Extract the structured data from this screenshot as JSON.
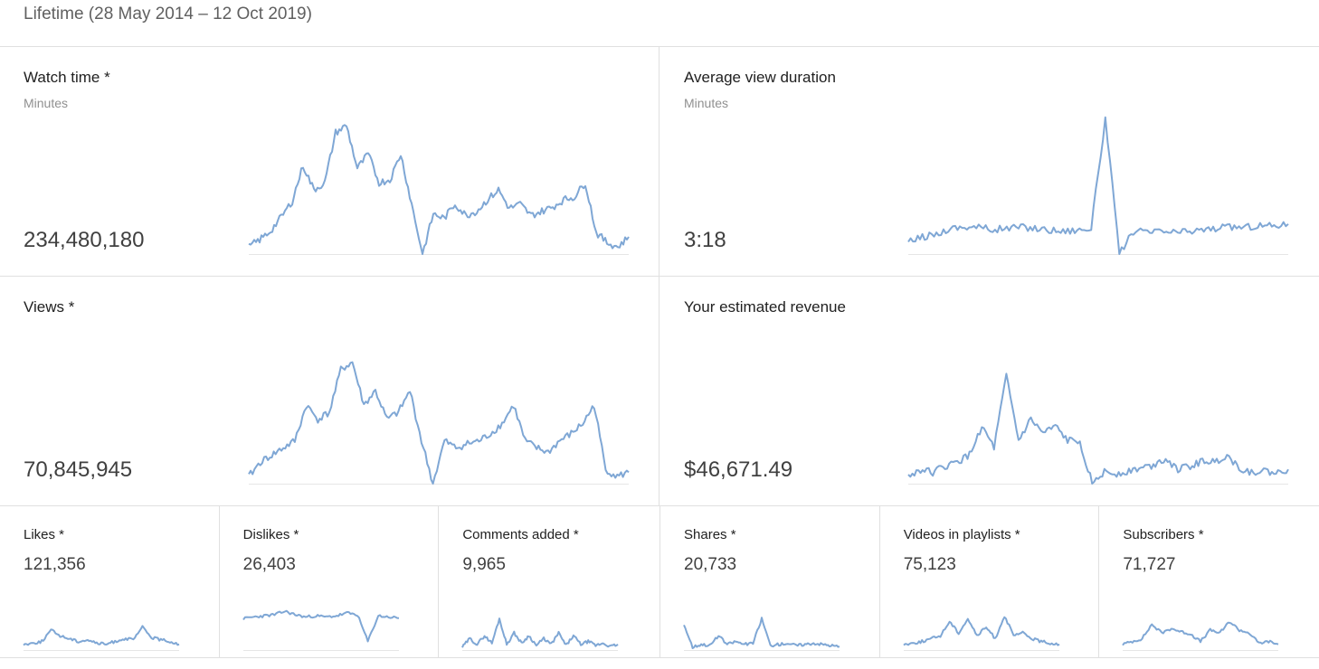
{
  "header": {
    "title": "Lifetime (28 May 2014 – 12 Oct 2019)"
  },
  "accent_color": "#7fa7d5",
  "metrics_large": [
    {
      "key": "watch_time",
      "title": "Watch time *",
      "subtitle": "Minutes",
      "value": "234,480,180"
    },
    {
      "key": "avg_view_duration",
      "title": "Average view duration",
      "subtitle": "Minutes",
      "value": "3:18"
    },
    {
      "key": "views",
      "title": "Views *",
      "subtitle": "",
      "value": "70,845,945"
    },
    {
      "key": "revenue",
      "title": "Your estimated revenue",
      "subtitle": "",
      "value": "$46,671.49"
    }
  ],
  "metrics_small": [
    {
      "key": "likes",
      "title": "Likes *",
      "value": "121,356"
    },
    {
      "key": "dislikes",
      "title": "Dislikes *",
      "value": "26,403"
    },
    {
      "key": "comments",
      "title": "Comments added *",
      "value": "9,965"
    },
    {
      "key": "shares",
      "title": "Shares *",
      "value": "20,733"
    },
    {
      "key": "playlists",
      "title": "Videos in playlists *",
      "value": "75,123"
    },
    {
      "key": "subscribers",
      "title": "Subscribers *",
      "value": "71,727"
    }
  ],
  "chart_data": [
    {
      "type": "line",
      "metric": "watch_time",
      "series": [
        {
          "values": [
            0.05,
            0.1,
            0.16,
            0.26,
            0.37,
            0.62,
            0.45,
            0.5,
            0.85,
            0.9,
            0.6,
            0.7,
            0.5,
            0.52,
            0.7,
            0.35,
            0.0,
            0.28,
            0.25,
            0.35,
            0.27,
            0.3,
            0.38,
            0.45,
            0.32,
            0.35,
            0.27,
            0.3,
            0.33,
            0.38,
            0.4,
            0.5,
            0.15,
            0.08,
            0.05,
            0.12
          ]
        }
      ]
    },
    {
      "type": "line",
      "metric": "avg_view_duration",
      "series": [
        {
          "values": [
            0.08,
            0.12,
            0.14,
            0.18,
            0.19,
            0.19,
            0.17,
            0.18,
            0.19,
            0.18,
            0.17,
            0.16,
            0.17,
            0.18,
            0.95,
            0.0,
            0.16,
            0.15,
            0.16,
            0.15,
            0.16,
            0.17,
            0.18,
            0.19,
            0.19,
            0.2,
            0.2,
            0.21
          ]
        }
      ]
    },
    {
      "type": "line",
      "metric": "views",
      "series": [
        {
          "values": [
            0.05,
            0.15,
            0.2,
            0.25,
            0.3,
            0.55,
            0.45,
            0.5,
            0.8,
            0.85,
            0.55,
            0.65,
            0.45,
            0.5,
            0.65,
            0.3,
            0.0,
            0.3,
            0.25,
            0.28,
            0.3,
            0.35,
            0.42,
            0.55,
            0.3,
            0.25,
            0.22,
            0.3,
            0.35,
            0.42,
            0.55,
            0.1,
            0.05,
            0.08
          ]
        }
      ]
    },
    {
      "type": "line",
      "metric": "revenue",
      "series": [
        {
          "values": [
            0.05,
            0.1,
            0.08,
            0.12,
            0.15,
            0.2,
            0.4,
            0.25,
            0.75,
            0.3,
            0.45,
            0.35,
            0.4,
            0.3,
            0.3,
            0.0,
            0.08,
            0.07,
            0.09,
            0.11,
            0.13,
            0.18,
            0.1,
            0.12,
            0.16,
            0.15,
            0.2,
            0.11,
            0.08,
            0.09,
            0.07,
            0.1
          ]
        }
      ]
    },
    {
      "type": "line",
      "metric": "likes",
      "series": [
        {
          "values": [
            0.1,
            0.12,
            0.15,
            0.35,
            0.25,
            0.2,
            0.15,
            0.18,
            0.12,
            0.1,
            0.15,
            0.2,
            0.18,
            0.4,
            0.22,
            0.18,
            0.15,
            0.1
          ]
        }
      ]
    },
    {
      "type": "line",
      "metric": "dislikes",
      "series": [
        {
          "values": [
            0.55,
            0.58,
            0.6,
            0.62,
            0.68,
            0.62,
            0.58,
            0.6,
            0.58,
            0.6,
            0.65,
            0.62,
            0.15,
            0.6,
            0.58,
            0.56
          ]
        }
      ]
    },
    {
      "type": "line",
      "metric": "comments",
      "series": [
        {
          "values": [
            0.05,
            0.2,
            0.1,
            0.25,
            0.12,
            0.55,
            0.1,
            0.3,
            0.12,
            0.25,
            0.08,
            0.2,
            0.1,
            0.3,
            0.08,
            0.25,
            0.1,
            0.15,
            0.08,
            0.12,
            0.06,
            0.1
          ]
        }
      ]
    },
    {
      "type": "line",
      "metric": "shares",
      "series": [
        {
          "values": [
            0.45,
            0.05,
            0.1,
            0.08,
            0.25,
            0.1,
            0.15,
            0.1,
            0.12,
            0.55,
            0.08,
            0.1,
            0.12,
            0.08,
            0.1,
            0.12,
            0.1,
            0.08,
            0.06
          ]
        }
      ]
    },
    {
      "type": "line",
      "metric": "playlists",
      "series": [
        {
          "values": [
            0.1,
            0.12,
            0.15,
            0.2,
            0.25,
            0.5,
            0.3,
            0.55,
            0.25,
            0.4,
            0.2,
            0.6,
            0.25,
            0.3,
            0.2,
            0.15,
            0.12,
            0.1
          ]
        }
      ]
    },
    {
      "type": "line",
      "metric": "subscribers",
      "series": [
        {
          "values": [
            0.1,
            0.15,
            0.2,
            0.45,
            0.3,
            0.38,
            0.32,
            0.28,
            0.15,
            0.35,
            0.3,
            0.5,
            0.35,
            0.3,
            0.12,
            0.15,
            0.1
          ]
        }
      ]
    }
  ]
}
